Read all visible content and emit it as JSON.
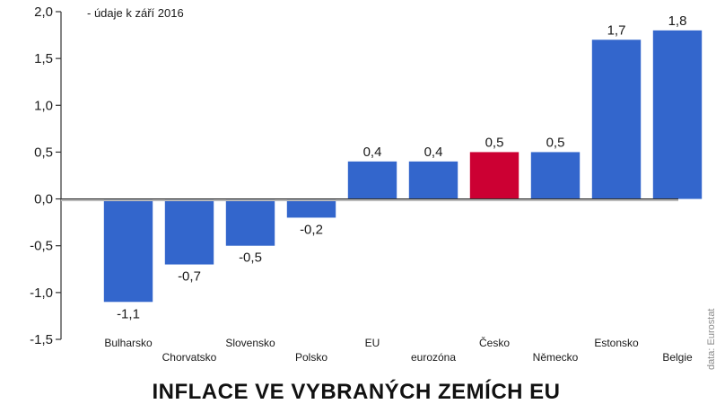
{
  "chart_data": {
    "type": "bar",
    "title": "INFLACE VE VYBRANÝCH ZEMÍCH EU",
    "note": "- údaje k září 2016",
    "source": "data: Eurostat",
    "categories": [
      "Bulharsko",
      "Chorvatsko",
      "Slovensko",
      "Polsko",
      "EU",
      "eurozóna",
      "Česko",
      "Německo",
      "Estonsko",
      "Belgie"
    ],
    "values": [
      -1.1,
      -0.7,
      -0.5,
      -0.2,
      0.4,
      0.4,
      0.5,
      0.5,
      1.7,
      1.8
    ],
    "value_labels": [
      "-1,1",
      "-0,7",
      "-0,5",
      "-0,2",
      "0,4",
      "0,4",
      "0,5",
      "0,5",
      "1,7",
      "1,8"
    ],
    "ylim": [
      -1.5,
      2.0
    ],
    "yticks": [
      2.0,
      1.5,
      1.0,
      0.5,
      0.0,
      -0.5,
      -1.0,
      -1.5
    ],
    "ytick_labels": [
      "2,0",
      "1,5",
      "1,0",
      "0,5",
      "0,0",
      "-0,5",
      "-1,0",
      "-1,5"
    ],
    "highlight_index": 6,
    "colors": {
      "bar": "#3366cc",
      "highlight": "#cc0033",
      "axis": "#333333"
    }
  }
}
